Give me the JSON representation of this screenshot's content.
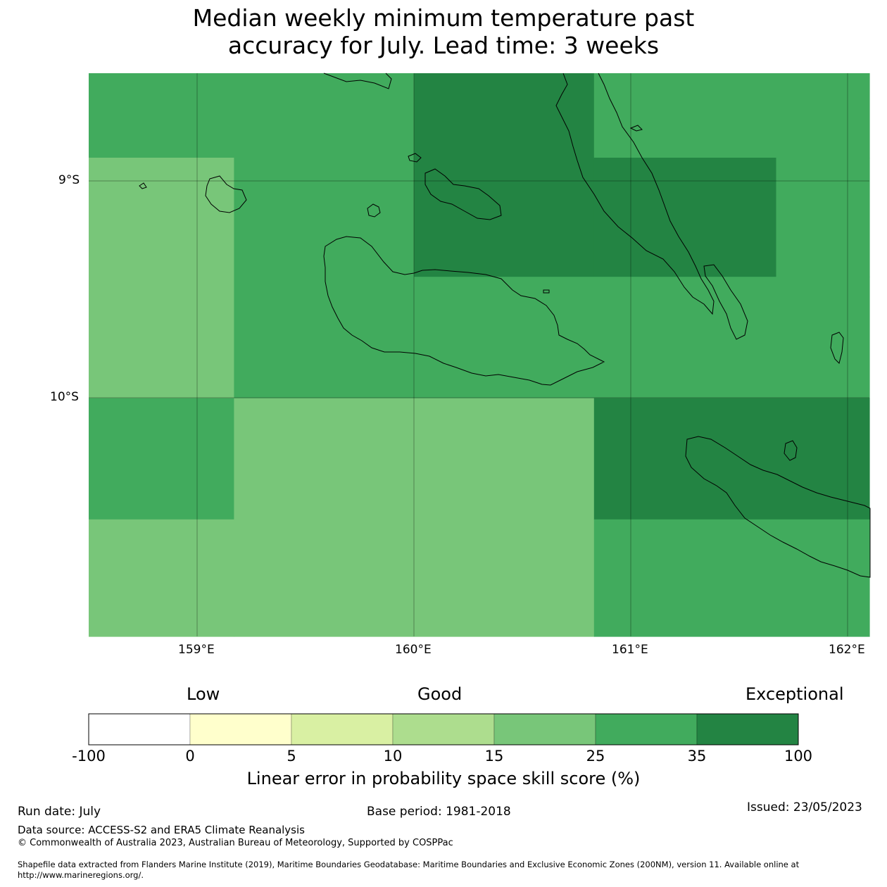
{
  "title": {
    "line1": "Median weekly minimum temperature past",
    "line2": "accuracy for July. Lead time: 3 weeks"
  },
  "map": {
    "lon_range": [
      158.5,
      162.1
    ],
    "lat_range": [
      -11.1,
      -8.5
    ],
    "gridlines": true,
    "lat_ticks": [
      "9°S",
      "10°S"
    ],
    "lon_ticks": [
      "159°E",
      "160°E",
      "161°E",
      "162°E"
    ],
    "skill_cells": [
      {
        "lon": [
          158.5,
          160.0
        ],
        "lat": [
          -8.89,
          -8.5
        ],
        "category": "25-35"
      },
      {
        "lon": [
          158.5,
          159.17
        ],
        "lat": [
          -10.0,
          -8.89
        ],
        "category": "15-25"
      },
      {
        "lon": [
          159.17,
          160.0
        ],
        "lat": [
          -10.0,
          -8.89
        ],
        "category": "25-35"
      },
      {
        "lon": [
          160.0,
          160.83
        ],
        "lat": [
          -9.44,
          -8.5
        ],
        "category": "35-100"
      },
      {
        "lon": [
          160.83,
          162.1
        ],
        "lat": [
          -8.89,
          -8.5
        ],
        "category": "25-35"
      },
      {
        "lon": [
          160.83,
          161.67
        ],
        "lat": [
          -9.44,
          -8.89
        ],
        "category": "35-100"
      },
      {
        "lon": [
          161.67,
          162.1
        ],
        "lat": [
          -9.44,
          -8.89
        ],
        "category": "25-35"
      },
      {
        "lon": [
          160.0,
          162.1
        ],
        "lat": [
          -10.0,
          -9.44
        ],
        "category": "25-35"
      },
      {
        "lon": [
          158.5,
          159.17
        ],
        "lat": [
          -10.56,
          -10.0
        ],
        "category": "25-35"
      },
      {
        "lon": [
          158.5,
          159.17
        ],
        "lat": [
          -11.1,
          -10.56
        ],
        "category": "15-25"
      },
      {
        "lon": [
          159.17,
          160.83
        ],
        "lat": [
          -11.1,
          -10.0
        ],
        "category": "15-25"
      },
      {
        "lon": [
          160.83,
          162.1
        ],
        "lat": [
          -10.56,
          -10.0
        ],
        "category": "35-100"
      },
      {
        "lon": [
          160.83,
          162.1
        ],
        "lat": [
          -11.1,
          -10.56
        ],
        "category": "25-35"
      }
    ]
  },
  "colorbar": {
    "headings": {
      "low": "Low",
      "good": "Good",
      "exceptional": "Exceptional"
    },
    "ticks": [
      "-100",
      "0",
      "5",
      "10",
      "15",
      "25",
      "35",
      "100"
    ],
    "bins": [
      {
        "range": "-100 to 0",
        "color": "#ffffff"
      },
      {
        "range": "0 to 5",
        "color": "#ffffcc"
      },
      {
        "range": "5 to 10",
        "color": "#d9f0a3"
      },
      {
        "range": "10 to 15",
        "color": "#addd8e"
      },
      {
        "range": "15 to 25",
        "color": "#78c679"
      },
      {
        "range": "25 to 35",
        "color": "#41ab5d"
      },
      {
        "range": "35 to 100",
        "color": "#238443"
      }
    ],
    "label": "Linear error in probability space skill score (%)"
  },
  "footer": {
    "run_date": "Run date: July",
    "base_period": "Base period: 1981-2018",
    "issued": "Issued: 23/05/2023",
    "data_source": "Data source: ACCESS-S2 and ERA5 Climate Reanalysis",
    "copyright": "© Commonwealth of Australia 2023, Australian Bureau of Meteorology, Supported by COSPPac",
    "shapefile_line1": "Shapefile data extracted from Flanders Marine Institute (2019), Maritime Boundaries Geodatabase: Maritime Boundaries and Exclusive Economic Zones (200NM), version 11. Available online at",
    "shapefile_line2": "http://www.marineregions.org/."
  }
}
